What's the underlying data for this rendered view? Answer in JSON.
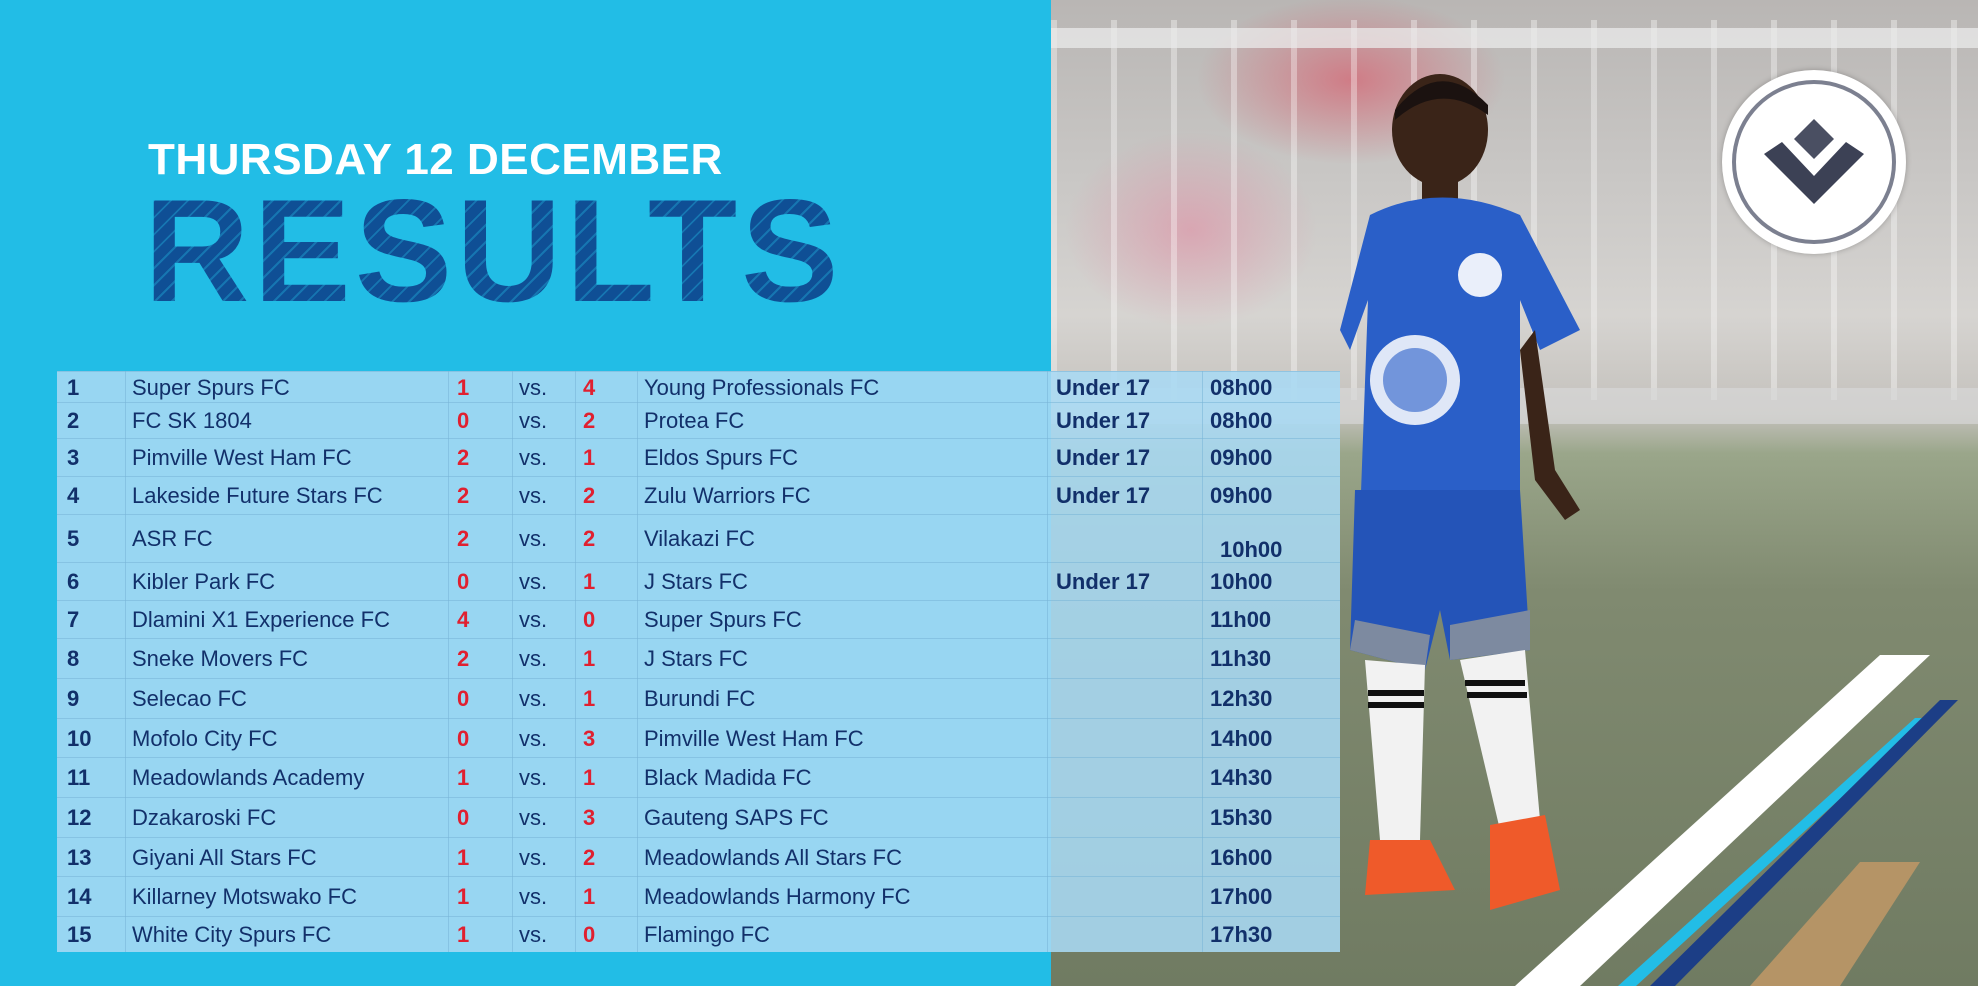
{
  "header": {
    "date": "THURSDAY 12 DECEMBER",
    "title": "RESULTS"
  },
  "colors": {
    "panel_blue": "#22bde6",
    "title_navy": "#0f4f95",
    "score_red": "#e02030",
    "text_navy": "#12306a"
  },
  "results": [
    {
      "num": "1",
      "home": "Super Spurs FC",
      "home_score": "1",
      "vs": "vs.",
      "away_score": "4",
      "away": "Young Professionals FC",
      "age": "Under 17",
      "time": "08h00"
    },
    {
      "num": "2",
      "home": "FC SK 1804",
      "home_score": "0",
      "vs": "vs.",
      "away_score": "2",
      "away": "Protea FC",
      "age": "Under 17",
      "time": "08h00"
    },
    {
      "num": "3",
      "home": "Pimville West Ham FC",
      "home_score": "2",
      "vs": "vs.",
      "away_score": "1",
      "away": "Eldos Spurs FC",
      "age": "Under 17",
      "time": "09h00"
    },
    {
      "num": "4",
      "home": "Lakeside Future Stars FC",
      "home_score": "2",
      "vs": "vs.",
      "away_score": "2",
      "away": "Zulu Warriors FC",
      "age": "Under 17",
      "time": "09h00"
    },
    {
      "num": "5",
      "home": "ASR FC",
      "home_score": "2",
      "vs": "vs.",
      "away_score": "2",
      "away": "Vilakazi FC",
      "age": "",
      "time": "10h00"
    },
    {
      "num": "6",
      "home": "Kibler Park FC",
      "home_score": "0",
      "vs": "vs.",
      "away_score": "1",
      "away": "J Stars FC",
      "age": "Under 17",
      "time": "10h00"
    },
    {
      "num": "7",
      "home": "Dlamini X1 Experience FC",
      "home_score": "4",
      "vs": "vs.",
      "away_score": "0",
      "away": "Super Spurs FC",
      "age": "",
      "time": "11h00"
    },
    {
      "num": "8",
      "home": "Sneke Movers FC",
      "home_score": "2",
      "vs": "vs.",
      "away_score": "1",
      "away": "J Stars FC",
      "age": "",
      "time": "11h30"
    },
    {
      "num": "9",
      "home": "Selecao FC",
      "home_score": "0",
      "vs": "vs.",
      "away_score": "1",
      "away": "Burundi FC",
      "age": "",
      "time": "12h30"
    },
    {
      "num": "10",
      "home": "Mofolo City FC",
      "home_score": "0",
      "vs": "vs.",
      "away_score": "3",
      "away": "Pimville West Ham FC",
      "age": "",
      "time": "14h00"
    },
    {
      "num": "11",
      "home": "Meadowlands Academy",
      "home_score": "1",
      "vs": "vs.",
      "away_score": "1",
      "away": "Black Madida FC",
      "age": "",
      "time": "14h30"
    },
    {
      "num": "12",
      "home": "Dzakaroski FC",
      "home_score": "0",
      "vs": "vs.",
      "away_score": "3",
      "away": "Gauteng SAPS FC",
      "age": "",
      "time": "15h30"
    },
    {
      "num": "13",
      "home": "Giyani All Stars FC",
      "home_score": "1",
      "vs": "vs.",
      "away_score": "2",
      "away": "Meadowlands All Stars FC",
      "age": "",
      "time": "16h00"
    },
    {
      "num": "14",
      "home": "Killarney Motswako FC",
      "home_score": "1",
      "vs": "vs.",
      "away_score": "1",
      "away": "Meadowlands Harmony FC",
      "age": "",
      "time": "17h00"
    },
    {
      "num": "15",
      "home": "White City Spurs FC",
      "home_score": "1",
      "vs": "vs.",
      "away_score": "0",
      "away": "Flamingo FC",
      "age": "",
      "time": "17h30"
    }
  ]
}
